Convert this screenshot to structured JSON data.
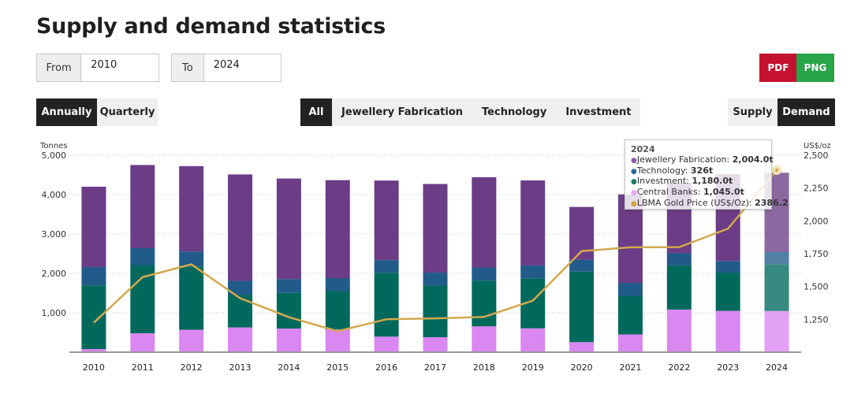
{
  "page_title": "Supply and demand statistics",
  "range": {
    "from_label": "From",
    "from_value": "2010",
    "to_label": "To",
    "to_value": "2024"
  },
  "export": {
    "pdf_label": "PDF",
    "png_label": "PNG",
    "pdf_color": "#c41230",
    "png_color": "#2aa449"
  },
  "period_toggle": {
    "annually": "Annually",
    "quarterly": "Quarterly",
    "selected": "Annually"
  },
  "category_filter": {
    "all": "All",
    "jewellery": "Jewellery Fabrication",
    "technology": "Technology",
    "investment": "Investment",
    "selected": "All"
  },
  "side_toggle": {
    "supply": "Supply",
    "demand": "Demand",
    "selected": "Demand"
  },
  "tooltip": {
    "year": "2024",
    "rows": [
      {
        "label": "Jewellery Fabrication: ",
        "value": "2,004.0t",
        "color": "#8b5fa6"
      },
      {
        "label": "Technology: ",
        "value": "326t",
        "color": "#2b6a9a"
      },
      {
        "label": "Investment: ",
        "value": "1,180.0t",
        "color": "#1a7a66"
      },
      {
        "label": "Central Banks: ",
        "value": "1,045.0t",
        "color": "#e9a3f5"
      },
      {
        "label": "LBMA Gold Price (US$/Oz): ",
        "value": "2386.2",
        "color": "#d2a33b"
      }
    ]
  },
  "chart_data": {
    "type": "bar",
    "stacked": true,
    "categories": [
      "2010",
      "2011",
      "2012",
      "2013",
      "2014",
      "2015",
      "2016",
      "2017",
      "2018",
      "2019",
      "2020",
      "2021",
      "2022",
      "2023",
      "2024"
    ],
    "left_axis": {
      "label": "Tonnes",
      "ylim": [
        0,
        5000
      ],
      "ticks": [
        "1,000",
        "2,000",
        "3,000",
        "4,000",
        "5,000"
      ]
    },
    "right_axis": {
      "label": "US$/oz",
      "ylim": [
        1000,
        2500
      ],
      "ticks": [
        "1,250",
        "1,500",
        "1,750",
        "2,000",
        "2,250",
        "2,500"
      ]
    },
    "series": [
      {
        "name": "Central Banks",
        "color": "#da87f2",
        "values": [
          79,
          481,
          569,
          629,
          601,
          580,
          395,
          379,
          656,
          605,
          255,
          450,
          1082,
          1050,
          1045
        ]
      },
      {
        "name": "Investment",
        "color": "#00695c",
        "values": [
          1616,
          1729,
          1608,
          830,
          905,
          970,
          1620,
          1310,
          1160,
          1270,
          1790,
          980,
          1120,
          960,
          1180
        ]
      },
      {
        "name": "Technology",
        "color": "#215b8a",
        "values": [
          466,
          430,
          380,
          350,
          350,
          330,
          320,
          332,
          335,
          327,
          302,
          330,
          309,
          305,
          326
        ]
      },
      {
        "name": "Jewellery Fabrication",
        "color": "#6b3d86",
        "values": [
          2039,
          2111,
          2166,
          2703,
          2552,
          2487,
          2022,
          2249,
          2290,
          2158,
          1340,
          2246,
          1790,
          2200,
          2004
        ]
      },
      {
        "name": "LBMA Gold Price (US$/Oz)",
        "type": "line",
        "axis": "right",
        "color": "#d2a84e",
        "values": [
          1224.5,
          1571.5,
          1669.0,
          1411.2,
          1266.4,
          1160.1,
          1250.8,
          1257.1,
          1268.5,
          1392.6,
          1769.6,
          1798.6,
          1800.1,
          1940.5,
          2386.2
        ]
      }
    ],
    "highlight_category": "2024",
    "grid": true,
    "legend": "none"
  }
}
